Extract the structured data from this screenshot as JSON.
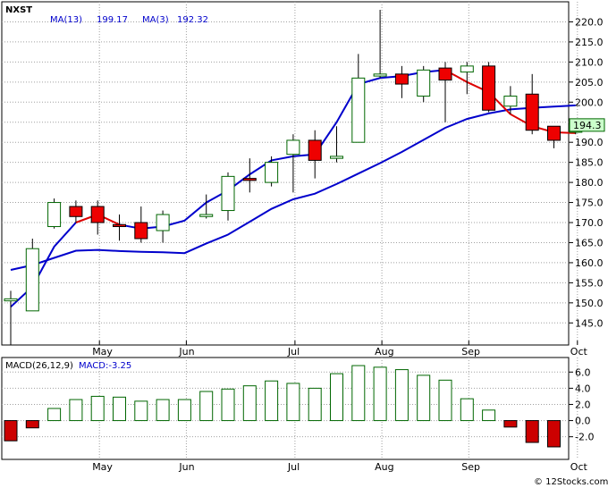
{
  "chart_data": [
    {
      "type": "candlestick",
      "symbol": "NXST",
      "legend": [
        {
          "label": "MA(13)",
          "value": "199.17",
          "color": "#0000cc"
        },
        {
          "label": "MA(3)",
          "value": "192.32",
          "color": "#0000cc"
        }
      ],
      "months": [
        {
          "label": "May",
          "w": 5
        },
        {
          "label": "Jun",
          "w": 9
        },
        {
          "label": "Jul",
          "w": 14
        },
        {
          "label": "Aug",
          "w": 18
        },
        {
          "label": "Sep",
          "w": 22
        },
        {
          "label": "Oct",
          "w": 27
        }
      ],
      "ylim": [
        139.5,
        225
      ],
      "yticks": [
        145,
        150,
        155,
        160,
        165,
        170,
        175,
        180,
        185,
        190,
        195,
        200,
        205,
        210,
        215,
        220
      ],
      "ytick_labels": [
        "145.0",
        "150.0",
        "155.0",
        "160.0",
        "165.0",
        "170.0",
        "175.0",
        "180.0",
        "185.0",
        "190.0",
        "195.0",
        "200.0",
        "205.0",
        "210.0",
        "215.0",
        "220.0"
      ],
      "last_price": "194.3",
      "candles": [
        {
          "w": 1,
          "o": 150.5,
          "h": 153,
          "l": 139.5,
          "c": 151.0
        },
        {
          "w": 2,
          "o": 148,
          "h": 166,
          "l": 148,
          "c": 163.5
        },
        {
          "w": 3,
          "o": 169,
          "h": 176,
          "l": 168.5,
          "c": 175
        },
        {
          "w": 4,
          "o": 174,
          "h": 175.5,
          "l": 170,
          "c": 171.5
        },
        {
          "w": 5,
          "o": 174,
          "h": 175.5,
          "l": 167,
          "c": 170
        },
        {
          "w": 6,
          "o": 169.5,
          "h": 172,
          "l": 165.5,
          "c": 169
        },
        {
          "w": 7,
          "o": 170,
          "h": 174,
          "l": 165,
          "c": 166
        },
        {
          "w": 8,
          "o": 168,
          "h": 173,
          "l": 165,
          "c": 172
        },
        {
          "w": 10,
          "o": 171.5,
          "h": 177,
          "l": 171,
          "c": 172
        },
        {
          "w": 11,
          "o": 173,
          "h": 182.5,
          "l": 170.5,
          "c": 181.5
        },
        {
          "w": 12,
          "o": 181,
          "h": 186,
          "l": 177.5,
          "c": 180.5
        },
        {
          "w": 13,
          "o": 180,
          "h": 186.5,
          "l": 179,
          "c": 185
        },
        {
          "w": 14,
          "o": 187,
          "h": 192,
          "l": 177.5,
          "c": 190.5
        },
        {
          "w": 15,
          "o": 190.5,
          "h": 193,
          "l": 181,
          "c": 185.5
        },
        {
          "w": 16,
          "o": 186,
          "h": 194,
          "l": 185,
          "c": 186.5
        },
        {
          "w": 17,
          "o": 190,
          "h": 212,
          "l": 190,
          "c": 206
        },
        {
          "w": 18,
          "o": 206.5,
          "h": 223,
          "l": 206,
          "c": 207
        },
        {
          "w": 19,
          "o": 207,
          "h": 209,
          "l": 201,
          "c": 204.5
        },
        {
          "w": 20,
          "o": 201.5,
          "h": 209,
          "l": 200,
          "c": 208
        },
        {
          "w": 21,
          "o": 208.5,
          "h": 210,
          "l": 195,
          "c": 205.5
        },
        {
          "w": 22,
          "o": 207.5,
          "h": 210,
          "l": 202,
          "c": 209
        },
        {
          "w": 23,
          "o": 209,
          "h": 210,
          "l": 197.5,
          "c": 198
        },
        {
          "w": 24,
          "o": 199,
          "h": 204,
          "l": 197,
          "c": 201.5
        },
        {
          "w": 25,
          "o": 202,
          "h": 207,
          "l": 192,
          "c": 193
        },
        {
          "w": 26,
          "o": 194,
          "h": 194,
          "l": 188.5,
          "c": 190.5
        },
        {
          "w": 27,
          "o": 192.5,
          "h": 195,
          "l": 192,
          "c": 194.3
        }
      ],
      "series": [
        {
          "name": "MA(13)",
          "color": "#0000cc",
          "x": [
            1,
            2,
            3,
            4,
            5,
            6,
            7,
            8,
            9,
            10,
            11,
            12,
            13,
            14,
            15,
            16,
            17,
            18,
            19,
            20,
            21,
            22,
            23,
            24,
            25,
            26,
            27
          ],
          "values": [
            158.2,
            159.4,
            161.2,
            163,
            163.2,
            162.9,
            162.7,
            162.6,
            162.4,
            164.8,
            167,
            170.2,
            173.4,
            175.8,
            177.2,
            179.6,
            182.2,
            184.8,
            187.6,
            190.6,
            193.6,
            195.8,
            197.2,
            198.2,
            198.6,
            198.9,
            199.2
          ]
        },
        {
          "name": "MA(3)",
          "x": [
            1,
            2,
            3,
            4,
            5,
            6,
            7,
            8,
            9,
            10,
            11,
            12,
            13,
            14,
            15,
            16,
            17,
            18,
            19,
            20,
            21,
            22,
            23,
            24,
            25,
            26,
            27
          ],
          "values": [
            149,
            154,
            164,
            170,
            172,
            169.5,
            168.5,
            169,
            170.5,
            175,
            178,
            182,
            185.5,
            186.5,
            187,
            195,
            204.5,
            206,
            206.5,
            207.5,
            208,
            205,
            202.5,
            197,
            194,
            192.5,
            192.3
          ],
          "segments": [
            {
              "from": 1,
              "to": 4,
              "color": "#0000cc"
            },
            {
              "from": 4,
              "to": 6,
              "color": "#dd0000"
            },
            {
              "from": 6,
              "to": 8,
              "color": "#0000cc"
            },
            {
              "from": 8,
              "to": 15,
              "color": "#0000cc"
            },
            {
              "from": 15,
              "to": 20,
              "color": "#0000cc"
            },
            {
              "from": 20,
              "to": 21,
              "color": "#0000cc"
            },
            {
              "from": 21,
              "to": 24,
              "color": "#dd0000"
            },
            {
              "from": 24,
              "to": 27,
              "color": "#dd0000"
            }
          ]
        },
        {
          "name": "MA(13)-red",
          "color": "#dd0000",
          "x": [
            3,
            4,
            5,
            6,
            7,
            8,
            9
          ],
          "values": [
            163,
            163.2,
            162.9,
            162.7,
            162.6,
            162.5,
            162.4
          ]
        }
      ]
    },
    {
      "type": "bar",
      "label": "MACD(26,12,9)",
      "value_label": "MACD:-3.25",
      "ylim": [
        -4.8,
        7.8
      ],
      "yticks": [
        -2,
        0,
        2,
        4,
        6
      ],
      "ytick_labels": [
        "-2.0",
        "0.0",
        "2.0",
        "4.0",
        "6.0"
      ],
      "x": [
        1,
        2,
        3,
        4,
        5,
        6,
        7,
        8,
        9,
        10,
        11,
        12,
        13,
        14,
        15,
        16,
        17,
        18,
        19,
        20,
        21,
        22,
        23,
        24,
        25,
        26
      ],
      "values": [
        -2.5,
        -0.9,
        1.5,
        2.6,
        3.0,
        2.9,
        2.4,
        2.6,
        2.6,
        3.6,
        3.9,
        4.3,
        4.9,
        4.6,
        4.0,
        5.8,
        6.8,
        6.6,
        6.3,
        5.6,
        5.0,
        2.7,
        1.3,
        -0.8,
        -2.7,
        -3.25
      ],
      "colors_pos": "#006600",
      "colors_neg": "#cc0000"
    }
  ],
  "footer": {
    "copyright": "© 12Stocks.com"
  }
}
